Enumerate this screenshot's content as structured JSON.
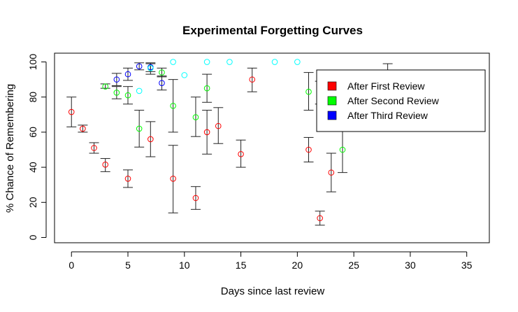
{
  "chart_data": {
    "type": "scatter",
    "title": "Experimental Forgetting Curves",
    "xlabel": "Days since last review",
    "ylabel": "% Chance of Remembering",
    "xlim": [
      -1.5,
      37
    ],
    "ylim": [
      -3,
      105
    ],
    "x_ticks": [
      0,
      5,
      10,
      15,
      20,
      25,
      30,
      35
    ],
    "y_ticks": [
      0,
      20,
      40,
      60,
      80,
      100
    ],
    "legend": {
      "position": "top-right",
      "entries": [
        {
          "label": "After First Review",
          "color": "#ff0000"
        },
        {
          "label": "After Second Review",
          "color": "#00ff00"
        },
        {
          "label": "After Third Review",
          "color": "#0000ff"
        }
      ]
    },
    "series": [
      {
        "name": "After First Review",
        "color": "#ff0000",
        "points": [
          {
            "x": 0,
            "y": 71.5,
            "lo": 63,
            "hi": 80
          },
          {
            "x": 1,
            "y": 62,
            "lo": 60,
            "hi": 64
          },
          {
            "x": 2,
            "y": 51,
            "lo": 48,
            "hi": 54
          },
          {
            "x": 3,
            "y": 41.5,
            "lo": 37.5,
            "hi": 45
          },
          {
            "x": 5,
            "y": 33.5,
            "lo": 28.5,
            "hi": 38.5
          },
          {
            "x": 7,
            "y": 56,
            "lo": 46,
            "hi": 66
          },
          {
            "x": 9,
            "y": 33.5,
            "lo": 14,
            "hi": 52.5
          },
          {
            "x": 11,
            "y": 22.5,
            "lo": 16,
            "hi": 29
          },
          {
            "x": 12,
            "y": 60,
            "lo": 47.5,
            "hi": 72.5
          },
          {
            "x": 13,
            "y": 63.5,
            "lo": 53.5,
            "hi": 74
          },
          {
            "x": 15,
            "y": 47.5,
            "lo": 40,
            "hi": 55.5
          },
          {
            "x": 16,
            "y": 90,
            "lo": 83,
            "hi": 96.5
          },
          {
            "x": 21,
            "y": 50,
            "lo": 43,
            "hi": 57
          },
          {
            "x": 22,
            "y": 11,
            "lo": 7,
            "hi": 15
          },
          {
            "x": 23,
            "y": 37,
            "lo": 26,
            "hi": 48
          }
        ]
      },
      {
        "name": "After Second Review",
        "color": "#00ff00",
        "points": [
          {
            "x": 3,
            "y": 86,
            "lo": 85,
            "hi": 87.5
          },
          {
            "x": 4,
            "y": 82.5,
            "lo": 79,
            "hi": 86
          },
          {
            "x": 5,
            "y": 81,
            "lo": 76,
            "hi": 86
          },
          {
            "x": 6,
            "y": 62,
            "lo": 51.5,
            "hi": 72.5
          },
          {
            "x": 7,
            "y": 96.5,
            "lo": 93,
            "hi": 99
          },
          {
            "x": 8,
            "y": 94,
            "lo": 91.5,
            "hi": 96.5
          },
          {
            "x": 9,
            "y": 75,
            "lo": 60,
            "hi": 90
          },
          {
            "x": 11,
            "y": 68.5,
            "lo": 57.5,
            "hi": 80
          },
          {
            "x": 12,
            "y": 85,
            "lo": 77,
            "hi": 93
          },
          {
            "x": 21,
            "y": 83,
            "lo": 72.5,
            "hi": 94
          },
          {
            "x": 24,
            "y": 50,
            "lo": 37,
            "hi": 63
          }
        ]
      },
      {
        "name": "After Third Review",
        "color": "#0000ff",
        "points": [
          {
            "x": 4,
            "y": 90,
            "lo": 86.5,
            "hi": 93.5
          },
          {
            "x": 5,
            "y": 93,
            "lo": 89.5,
            "hi": 96.5
          },
          {
            "x": 6,
            "y": 97.5,
            "lo": 95.5,
            "hi": 99.5
          },
          {
            "x": 7,
            "y": 97,
            "lo": 94.5,
            "hi": 99.5
          },
          {
            "x": 8,
            "y": 88,
            "lo": 84,
            "hi": 92
          },
          {
            "x": 22,
            "y": 82.5,
            "lo": 76,
            "hi": 89
          }
        ]
      },
      {
        "color": "#00ffff",
        "points": [
          {
            "x": 6,
            "y": 83.5
          },
          {
            "x": 7,
            "y": 96.5
          },
          {
            "x": 9,
            "y": 100
          },
          {
            "x": 10,
            "y": 92.5
          },
          {
            "x": 12,
            "y": 100
          },
          {
            "x": 14,
            "y": 100
          },
          {
            "x": 18,
            "y": 100
          },
          {
            "x": 20,
            "y": 100
          }
        ]
      },
      {
        "color": "#000000",
        "points": [
          {
            "x": 28,
            "y": 87,
            "lo": 75,
            "hi": 99
          }
        ]
      }
    ]
  }
}
